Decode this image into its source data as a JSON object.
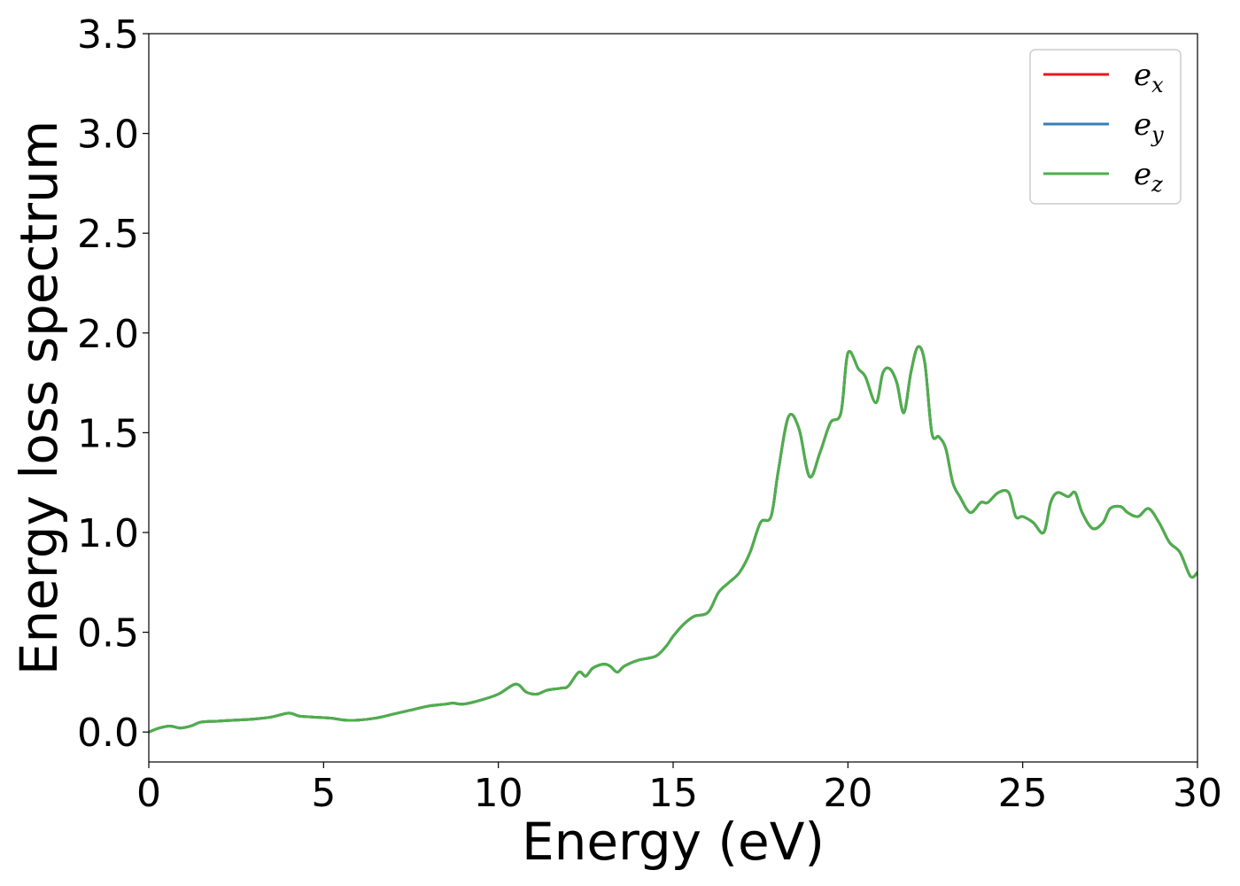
{
  "chart_data": {
    "type": "line",
    "title": "",
    "xlabel": "Energy (eV)",
    "ylabel": "Energy loss spectrum",
    "xlim": [
      0,
      30
    ],
    "ylim": [
      -0.15,
      3.5
    ],
    "xticks": [
      0,
      5,
      10,
      15,
      20,
      25,
      30
    ],
    "xtick_labels": [
      "0",
      "5",
      "10",
      "15",
      "20",
      "25",
      "30"
    ],
    "yticks": [
      0.0,
      0.5,
      1.0,
      1.5,
      2.0,
      2.5,
      3.0,
      3.5
    ],
    "ytick_labels": [
      "0.0",
      "0.5",
      "1.0",
      "1.5",
      "2.0",
      "2.5",
      "3.0",
      "3.5"
    ],
    "grid": false,
    "legend_position": "top-right",
    "series": [
      {
        "name": "e_x",
        "legend_base": "e",
        "legend_sub": "x",
        "color": "#e41a1c",
        "x": [
          0,
          0.3,
          0.6,
          0.9,
          1.2,
          1.5,
          2.0,
          2.5,
          3.0,
          3.5,
          4.0,
          4.3,
          4.7,
          5.2,
          5.6,
          6.0,
          6.5,
          7.0,
          7.5,
          8.0,
          8.5,
          8.7,
          9.0,
          9.5,
          10.0,
          10.5,
          10.8,
          11.1,
          11.4,
          11.8,
          12.0,
          12.3,
          12.5,
          12.7,
          13.0,
          13.2,
          13.4,
          13.6,
          14.0,
          14.5,
          14.8,
          15.0,
          15.3,
          15.6,
          16.0,
          16.3,
          16.6,
          16.9,
          17.2,
          17.5,
          17.8,
          18.0,
          18.3,
          18.6,
          18.9,
          19.2,
          19.5,
          19.8,
          20.0,
          20.3,
          20.5,
          20.8,
          21.0,
          21.2,
          21.4,
          21.6,
          21.8,
          22.0,
          22.2,
          22.4,
          22.6,
          22.8,
          23.0,
          23.2,
          23.5,
          23.8,
          24.0,
          24.3,
          24.6,
          24.8,
          25.0,
          25.3,
          25.6,
          25.8,
          26.0,
          26.3,
          26.5,
          26.7,
          27.0,
          27.3,
          27.5,
          27.8,
          28.0,
          28.3,
          28.6,
          28.9,
          29.2,
          29.5,
          29.8,
          30.0
        ],
        "y": [
          0.0,
          0.02,
          0.03,
          0.02,
          0.03,
          0.05,
          0.055,
          0.06,
          0.065,
          0.075,
          0.095,
          0.08,
          0.075,
          0.07,
          0.06,
          0.06,
          0.07,
          0.09,
          0.11,
          0.13,
          0.14,
          0.145,
          0.14,
          0.16,
          0.19,
          0.24,
          0.2,
          0.19,
          0.21,
          0.22,
          0.23,
          0.3,
          0.28,
          0.32,
          0.34,
          0.33,
          0.3,
          0.33,
          0.36,
          0.38,
          0.43,
          0.48,
          0.54,
          0.58,
          0.6,
          0.7,
          0.75,
          0.8,
          0.9,
          1.05,
          1.08,
          1.3,
          1.58,
          1.52,
          1.28,
          1.4,
          1.55,
          1.6,
          1.9,
          1.82,
          1.78,
          1.65,
          1.8,
          1.82,
          1.75,
          1.6,
          1.8,
          1.93,
          1.85,
          1.5,
          1.48,
          1.42,
          1.25,
          1.18,
          1.1,
          1.15,
          1.15,
          1.2,
          1.2,
          1.08,
          1.08,
          1.05,
          1.0,
          1.15,
          1.2,
          1.18,
          1.2,
          1.1,
          1.02,
          1.05,
          1.12,
          1.13,
          1.1,
          1.08,
          1.12,
          1.05,
          0.95,
          0.9,
          0.78,
          0.8
        ]
      },
      {
        "name": "e_y",
        "legend_base": "e",
        "legend_sub": "y",
        "color": "#377eb8",
        "x": [
          0,
          0.3,
          0.6,
          0.9,
          1.2,
          1.5,
          2.0,
          2.5,
          3.0,
          3.5,
          4.0,
          4.3,
          4.7,
          5.2,
          5.6,
          6.0,
          6.5,
          7.0,
          7.5,
          8.0,
          8.5,
          8.7,
          9.0,
          9.5,
          10.0,
          10.5,
          10.8,
          11.1,
          11.4,
          11.8,
          12.0,
          12.3,
          12.5,
          12.7,
          13.0,
          13.2,
          13.4,
          13.6,
          14.0,
          14.5,
          14.8,
          15.0,
          15.3,
          15.6,
          16.0,
          16.3,
          16.6,
          16.9,
          17.2,
          17.5,
          17.8,
          18.0,
          18.3,
          18.6,
          18.9,
          19.2,
          19.5,
          19.8,
          20.0,
          20.3,
          20.5,
          20.8,
          21.0,
          21.2,
          21.4,
          21.6,
          21.8,
          22.0,
          22.2,
          22.4,
          22.6,
          22.8,
          23.0,
          23.2,
          23.5,
          23.8,
          24.0,
          24.3,
          24.6,
          24.8,
          25.0,
          25.3,
          25.6,
          25.8,
          26.0,
          26.3,
          26.5,
          26.7,
          27.0,
          27.3,
          27.5,
          27.8,
          28.0,
          28.3,
          28.6,
          28.9,
          29.2,
          29.5,
          29.8,
          30.0
        ],
        "y": [
          0.0,
          0.02,
          0.03,
          0.02,
          0.03,
          0.05,
          0.055,
          0.06,
          0.065,
          0.075,
          0.095,
          0.08,
          0.075,
          0.07,
          0.06,
          0.06,
          0.07,
          0.09,
          0.11,
          0.13,
          0.14,
          0.145,
          0.14,
          0.16,
          0.19,
          0.24,
          0.2,
          0.19,
          0.21,
          0.22,
          0.23,
          0.3,
          0.28,
          0.32,
          0.34,
          0.33,
          0.3,
          0.33,
          0.36,
          0.38,
          0.43,
          0.48,
          0.54,
          0.58,
          0.6,
          0.7,
          0.75,
          0.8,
          0.9,
          1.05,
          1.08,
          1.3,
          1.58,
          1.52,
          1.28,
          1.4,
          1.55,
          1.6,
          1.9,
          1.82,
          1.78,
          1.65,
          1.8,
          1.82,
          1.75,
          1.6,
          1.8,
          1.93,
          1.85,
          1.5,
          1.48,
          1.42,
          1.25,
          1.18,
          1.1,
          1.15,
          1.15,
          1.2,
          1.2,
          1.08,
          1.08,
          1.05,
          1.0,
          1.15,
          1.2,
          1.18,
          1.2,
          1.1,
          1.02,
          1.05,
          1.12,
          1.13,
          1.1,
          1.08,
          1.12,
          1.05,
          0.95,
          0.9,
          0.78,
          0.8
        ]
      },
      {
        "name": "e_z",
        "legend_base": "e",
        "legend_sub": "z",
        "color": "#4daf4a",
        "x": [
          0,
          0.3,
          0.6,
          0.9,
          1.2,
          1.5,
          2.0,
          2.5,
          3.0,
          3.5,
          4.0,
          4.3,
          4.7,
          5.2,
          5.6,
          6.0,
          6.5,
          7.0,
          7.5,
          8.0,
          8.5,
          8.7,
          9.0,
          9.5,
          10.0,
          10.5,
          10.8,
          11.1,
          11.4,
          11.8,
          12.0,
          12.3,
          12.5,
          12.7,
          13.0,
          13.2,
          13.4,
          13.6,
          14.0,
          14.5,
          14.8,
          15.0,
          15.3,
          15.6,
          16.0,
          16.3,
          16.6,
          16.9,
          17.2,
          17.5,
          17.8,
          18.0,
          18.3,
          18.6,
          18.9,
          19.2,
          19.5,
          19.8,
          20.0,
          20.3,
          20.5,
          20.8,
          21.0,
          21.2,
          21.4,
          21.6,
          21.8,
          22.0,
          22.2,
          22.4,
          22.6,
          22.8,
          23.0,
          23.2,
          23.5,
          23.8,
          24.0,
          24.3,
          24.6,
          24.8,
          25.0,
          25.3,
          25.6,
          25.8,
          26.0,
          26.3,
          26.5,
          26.7,
          27.0,
          27.3,
          27.5,
          27.8,
          28.0,
          28.3,
          28.6,
          28.9,
          29.2,
          29.5,
          29.8,
          30.0
        ],
        "y": [
          0.0,
          0.02,
          0.03,
          0.02,
          0.03,
          0.05,
          0.055,
          0.06,
          0.065,
          0.075,
          0.095,
          0.08,
          0.075,
          0.07,
          0.06,
          0.06,
          0.07,
          0.09,
          0.11,
          0.13,
          0.14,
          0.145,
          0.14,
          0.16,
          0.19,
          0.24,
          0.2,
          0.19,
          0.21,
          0.22,
          0.23,
          0.3,
          0.28,
          0.32,
          0.34,
          0.33,
          0.3,
          0.33,
          0.36,
          0.38,
          0.43,
          0.48,
          0.54,
          0.58,
          0.6,
          0.7,
          0.75,
          0.8,
          0.9,
          1.05,
          1.08,
          1.3,
          1.58,
          1.52,
          1.28,
          1.4,
          1.55,
          1.6,
          1.9,
          1.82,
          1.78,
          1.65,
          1.8,
          1.82,
          1.75,
          1.6,
          1.8,
          1.93,
          1.85,
          1.5,
          1.48,
          1.42,
          1.25,
          1.18,
          1.1,
          1.15,
          1.15,
          1.2,
          1.2,
          1.08,
          1.08,
          1.05,
          1.0,
          1.15,
          1.2,
          1.18,
          1.2,
          1.1,
          1.02,
          1.05,
          1.12,
          1.13,
          1.1,
          1.08,
          1.12,
          1.05,
          0.95,
          0.9,
          0.78,
          0.8
        ]
      }
    ]
  }
}
